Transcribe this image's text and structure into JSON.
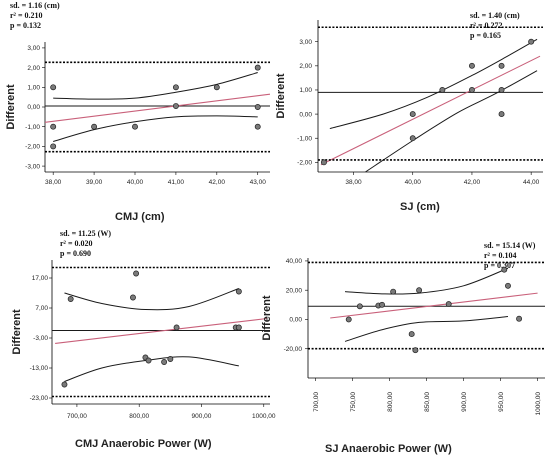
{
  "chart_data": [
    {
      "type": "scatter",
      "xlabel": "CMJ (cm)",
      "ylabel": "Different",
      "xlim": [
        37.8,
        43.3
      ],
      "ylim": [
        -3.3,
        3.3
      ],
      "xticks": [
        38,
        39,
        40,
        41,
        42,
        43
      ],
      "xtick_labels": [
        "38,00",
        "39,00",
        "40,00",
        "41,00",
        "42,00",
        "43,00"
      ],
      "yticks": [
        -3,
        -2,
        -1,
        0,
        1,
        2,
        3
      ],
      "ytick_labels": [
        "-3,00",
        "-2,00",
        "-1,00",
        "0,00",
        "1,00",
        "2,00",
        "3,00"
      ],
      "stats": [
        "sd. = 1.16 (cm)",
        "r² = 0.210",
        "p = 0.132"
      ],
      "limits": {
        "upper": 2.27,
        "mean": 0.05,
        "lower": -2.27
      },
      "regression": [
        [
          37.8,
          -0.78
        ],
        [
          43.3,
          0.65
        ]
      ],
      "ci_upper": [
        [
          38,
          0.45
        ],
        [
          39,
          0.4
        ],
        [
          40,
          0.45
        ],
        [
          41,
          0.75
        ],
        [
          42,
          1.15
        ],
        [
          43,
          1.75
        ]
      ],
      "ci_lower": [
        [
          38,
          -1.75
        ],
        [
          39,
          -1.15
        ],
        [
          40,
          -0.75
        ],
        [
          41,
          -0.5
        ],
        [
          42,
          -0.45
        ],
        [
          43,
          -0.5
        ]
      ],
      "points": [
        [
          38,
          1.0
        ],
        [
          38,
          -1.0
        ],
        [
          38,
          -2.0
        ],
        [
          39,
          -1.0
        ],
        [
          40,
          -1.0
        ],
        [
          41,
          1.0
        ],
        [
          41,
          0.05
        ],
        [
          42,
          1.0
        ],
        [
          43,
          2.0
        ],
        [
          43,
          0.0
        ],
        [
          43,
          -1.0
        ]
      ]
    },
    {
      "type": "scatter",
      "xlabel": "SJ (cm)",
      "ylabel": "Different",
      "xlim": [
        36.8,
        44.4
      ],
      "ylim": [
        -2.4,
        3.9
      ],
      "xticks": [
        38,
        40,
        42,
        44
      ],
      "xtick_labels": [
        "38,00",
        "40,00",
        "42,00",
        "44,00"
      ],
      "yticks": [
        -2,
        -1,
        0,
        1,
        2,
        3
      ],
      "ytick_labels": [
        "-2,00",
        "-1,00",
        "0,00",
        "1,00",
        "2,00",
        "3,00"
      ],
      "stats": [
        "sd. = 1.40 (cm)",
        "r² = 0.272",
        "p = 0.165"
      ],
      "limits": {
        "upper": 3.6,
        "mean": 0.9,
        "lower": -1.9
      },
      "regression": [
        [
          36.9,
          -2.1
        ],
        [
          44.3,
          2.4
        ]
      ],
      "ci_upper": [
        [
          37.2,
          -0.6
        ],
        [
          39,
          0.0
        ],
        [
          40.5,
          0.7
        ],
        [
          42,
          1.6
        ],
        [
          43.2,
          2.4
        ],
        [
          44.2,
          3.1
        ]
      ],
      "ci_lower": [
        [
          38.4,
          -2.4
        ],
        [
          40,
          -1.1
        ],
        [
          41.5,
          0.05
        ],
        [
          42.8,
          0.85
        ],
        [
          44.2,
          1.8
        ]
      ],
      "points": [
        [
          37,
          -2.0
        ],
        [
          40,
          0.0
        ],
        [
          40,
          -1.0
        ],
        [
          41,
          1.0
        ],
        [
          42,
          2.0
        ],
        [
          42,
          1.0
        ],
        [
          43,
          2.0
        ],
        [
          43,
          1.0
        ],
        [
          43,
          0.0
        ],
        [
          44,
          3.0
        ]
      ]
    },
    {
      "type": "scatter",
      "xlabel": "CMJ Anaerobic Power (W)",
      "ylabel": "Different",
      "xlim": [
        660,
        1010
      ],
      "ylim": [
        -25,
        23
      ],
      "xticks": [
        700,
        800,
        900,
        1000
      ],
      "xtick_labels": [
        "700,00",
        "800,00",
        "900,00",
        "1000,00"
      ],
      "yticks": [
        -23,
        -13,
        -3,
        7,
        17
      ],
      "ytick_labels": [
        "-23,00",
        "-13,00",
        "-3,00",
        "7,00",
        "17,00"
      ],
      "stats": [
        "sd. = 11.25 (W)",
        "r² = 0.020",
        "p = 0.690"
      ],
      "limits": {
        "upper": 20.5,
        "mean": -0.5,
        "lower": -22.5
      },
      "regression": [
        [
          665,
          -4.8
        ],
        [
          1005,
          3.5
        ]
      ],
      "ci_upper": [
        [
          680,
          12.0
        ],
        [
          740,
          8.5
        ],
        [
          810,
          6.5
        ],
        [
          880,
          7.5
        ],
        [
          960,
          13.5
        ]
      ],
      "ci_lower": [
        [
          680,
          -17.5
        ],
        [
          740,
          -13.0
        ],
        [
          810,
          -10.5
        ],
        [
          880,
          -9.3
        ],
        [
          960,
          -12.3
        ]
      ],
      "points": [
        [
          680,
          -18.5
        ],
        [
          690,
          10.0
        ],
        [
          790,
          10.5
        ],
        [
          795,
          18.5
        ],
        [
          810,
          -9.5
        ],
        [
          815,
          -10.5
        ],
        [
          840,
          -11.0
        ],
        [
          850,
          -10.0
        ],
        [
          860,
          0.5
        ],
        [
          955,
          0.5
        ],
        [
          960,
          0.5
        ],
        [
          960,
          12.5
        ]
      ]
    },
    {
      "type": "scatter",
      "xlabel": "SJ Anaerobic Power (W)",
      "ylabel": "Different",
      "xlim": [
        690,
        1010
      ],
      "ylim": [
        -40,
        42
      ],
      "xticks": [
        700,
        750,
        800,
        850,
        900,
        950,
        1000
      ],
      "xtick_labels": [
        "700,00",
        "750,00",
        "800,00",
        "850,00",
        "900,00",
        "950,00",
        "1000,00"
      ],
      "yticks": [
        -20,
        0,
        20,
        40
      ],
      "ytick_labels": [
        "-20,00",
        "0,00",
        "20,00",
        "40,00"
      ],
      "stats": [
        "sd. = 15.14 (W)",
        "r² = 0.104",
        "p = 0.307"
      ],
      "limits": {
        "upper": 39.0,
        "mean": 9.0,
        "lower": -20.0
      },
      "regression": [
        [
          720,
          1.0
        ],
        [
          1000,
          18.0
        ]
      ],
      "ci_upper": [
        [
          740,
          19.0
        ],
        [
          790,
          17.5
        ],
        [
          840,
          18.0
        ],
        [
          900,
          23.0
        ],
        [
          960,
          35.0
        ]
      ],
      "ci_lower": [
        [
          740,
          -15.0
        ],
        [
          790,
          -7.0
        ],
        [
          840,
          -2.0
        ],
        [
          900,
          -1.0
        ],
        [
          960,
          2.0
        ]
      ],
      "points": [
        [
          745,
          0.0
        ],
        [
          760,
          9.0
        ],
        [
          785,
          9.5
        ],
        [
          790,
          10.0
        ],
        [
          805,
          19.0
        ],
        [
          830,
          -10.0
        ],
        [
          835,
          -21.0
        ],
        [
          840,
          20.0
        ],
        [
          880,
          10.5
        ],
        [
          955,
          34.0
        ],
        [
          960,
          23.0
        ],
        [
          975,
          0.5
        ]
      ]
    }
  ],
  "colors": {
    "regression": "#c9607a",
    "fit": "#1a1a1a",
    "limits": "#000000",
    "point_fill": "#7a7a7a"
  }
}
